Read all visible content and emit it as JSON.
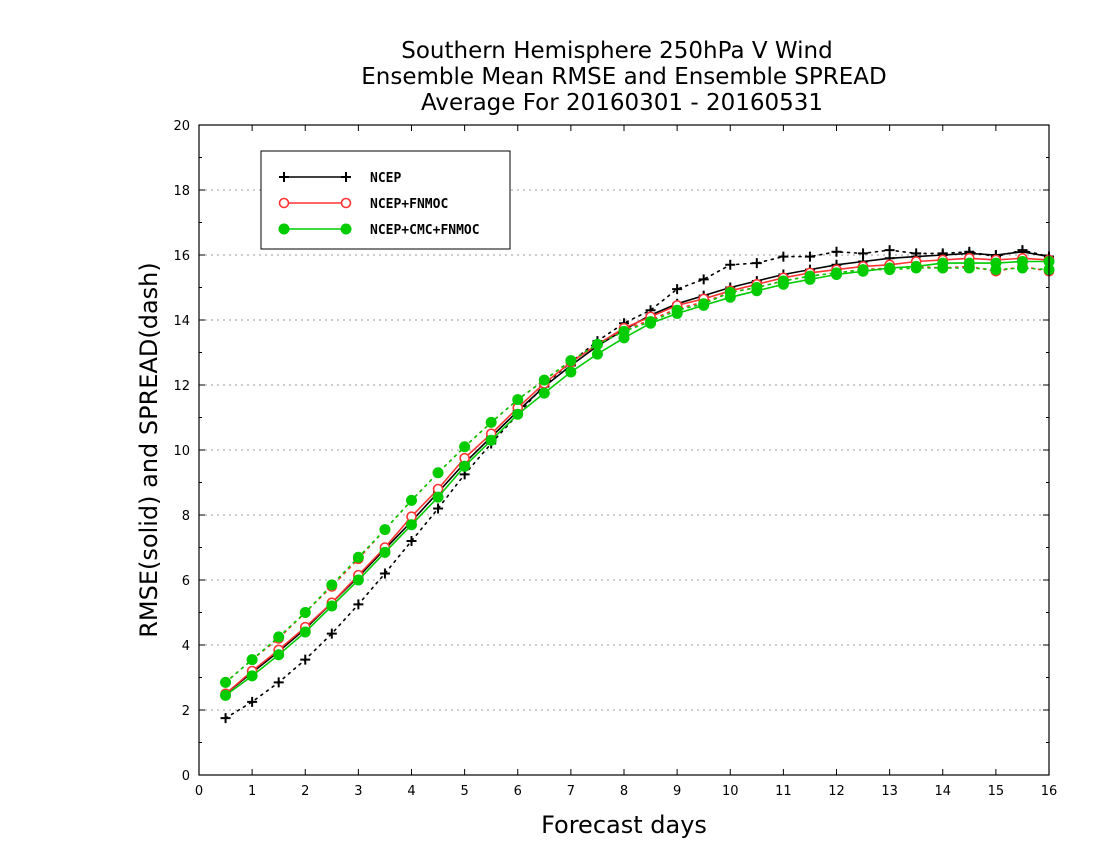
{
  "chart_data": {
    "type": "line",
    "title": [
      "Southern Hemisphere 250hPa V Wind",
      "Ensemble Mean RMSE and Ensemble SPREAD",
      "Average For 20160301 - 20160531"
    ],
    "xlabel": "Forecast days",
    "ylabel": "RMSE(solid) and SPREAD(dash)",
    "xlim": [
      0,
      16
    ],
    "ylim": [
      0,
      20
    ],
    "x_ticks": [
      "0",
      "1",
      "2",
      "3",
      "4",
      "5",
      "6",
      "7",
      "8",
      "9",
      "10",
      "11",
      "12",
      "13",
      "14",
      "15",
      "16"
    ],
    "y_ticks": [
      "0",
      "2",
      "4",
      "6",
      "8",
      "10",
      "12",
      "14",
      "16",
      "18",
      "20"
    ],
    "grid": true,
    "legend_position": "top-left",
    "x": [
      0.5,
      1,
      1.5,
      2,
      2.5,
      3,
      3.5,
      4,
      4.5,
      5,
      5.5,
      6,
      6.5,
      7,
      7.5,
      8,
      8.5,
      9,
      9.5,
      10,
      10.5,
      11,
      11.5,
      12,
      12.5,
      13,
      13.5,
      14,
      14.5,
      15,
      15.5,
      16
    ],
    "series": [
      {
        "name": "NCEP",
        "color": "#000000",
        "marker": "plus",
        "rmse": [
          2.5,
          3.15,
          3.8,
          4.5,
          5.3,
          6.1,
          6.95,
          7.8,
          8.7,
          9.6,
          10.4,
          11.2,
          11.95,
          12.6,
          13.2,
          13.7,
          14.15,
          14.5,
          14.75,
          15.0,
          15.2,
          15.4,
          15.55,
          15.7,
          15.8,
          15.9,
          15.95,
          16.0,
          16.05,
          16.0,
          16.1,
          15.95
        ],
        "spread": [
          1.75,
          2.25,
          2.85,
          3.55,
          4.35,
          5.25,
          6.2,
          7.2,
          8.2,
          9.25,
          10.2,
          11.1,
          12.0,
          12.7,
          13.35,
          13.9,
          14.3,
          14.95,
          15.25,
          15.7,
          15.75,
          15.95,
          15.95,
          16.1,
          16.05,
          16.15,
          16.05,
          16.05,
          16.1,
          15.95,
          16.15,
          15.95
        ]
      },
      {
        "name": "NCEP+FNMOC",
        "color": "#ff3333",
        "marker": "circle-open",
        "rmse": [
          2.5,
          3.2,
          3.85,
          4.55,
          5.3,
          6.15,
          7.0,
          7.95,
          8.8,
          9.75,
          10.5,
          11.3,
          12.05,
          12.7,
          13.25,
          13.75,
          14.1,
          14.45,
          14.65,
          14.9,
          15.1,
          15.3,
          15.45,
          15.55,
          15.65,
          15.7,
          15.8,
          15.85,
          15.9,
          15.85,
          15.9,
          15.85
        ],
        "spread": [
          2.85,
          3.55,
          4.2,
          5.0,
          5.8,
          6.65,
          7.55,
          8.45,
          9.3,
          10.1,
          10.85,
          11.55,
          12.15,
          12.75,
          13.25,
          13.7,
          14.0,
          14.35,
          14.55,
          14.85,
          15.0,
          15.2,
          15.35,
          15.45,
          15.55,
          15.6,
          15.65,
          15.6,
          15.65,
          15.5,
          15.65,
          15.5
        ]
      },
      {
        "name": "NCEP+CMC+FNMOC",
        "color": "#00cc00",
        "marker": "circle-filled",
        "rmse": [
          2.45,
          3.05,
          3.7,
          4.4,
          5.2,
          6.0,
          6.85,
          7.7,
          8.55,
          9.5,
          10.3,
          11.1,
          11.75,
          12.4,
          12.95,
          13.45,
          13.9,
          14.2,
          14.45,
          14.7,
          14.9,
          15.1,
          15.25,
          15.4,
          15.5,
          15.6,
          15.65,
          15.75,
          15.75,
          15.75,
          15.8,
          15.8
        ],
        "spread": [
          2.85,
          3.55,
          4.25,
          5.0,
          5.85,
          6.7,
          7.55,
          8.45,
          9.3,
          10.1,
          10.85,
          11.55,
          12.15,
          12.75,
          13.25,
          13.65,
          13.95,
          14.3,
          14.5,
          14.85,
          15.0,
          15.2,
          15.35,
          15.45,
          15.55,
          15.55,
          15.6,
          15.6,
          15.6,
          15.55,
          15.6,
          15.55
        ]
      }
    ]
  }
}
